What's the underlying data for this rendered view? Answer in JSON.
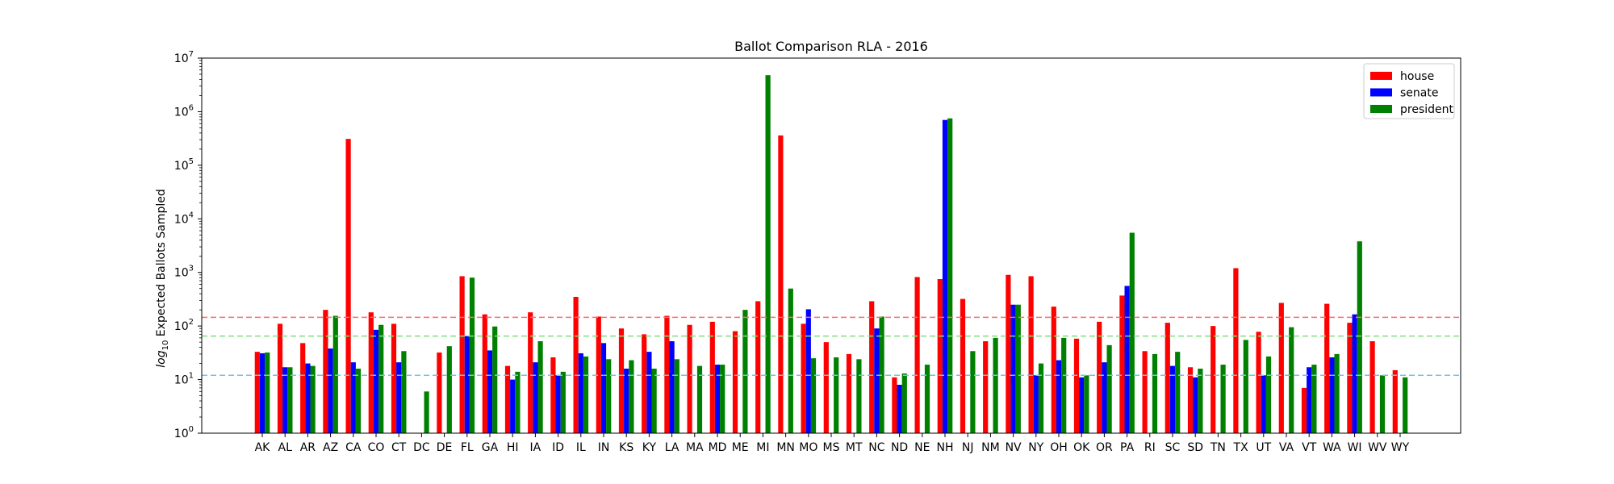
{
  "chart_data": {
    "type": "bar",
    "title": "Ballot Comparison RLA - 2016",
    "ylabel_prefix": "log",
    "ylabel_sub": "10",
    "ylabel_rest": " Expected Ballots Sampled",
    "xlabel": "",
    "yscale": "log",
    "ylim": [
      1,
      10000000
    ],
    "y_ticks": [
      {
        "value": 1,
        "base": "10",
        "exp": "0"
      },
      {
        "value": 10,
        "base": "10",
        "exp": "1"
      },
      {
        "value": 100,
        "base": "10",
        "exp": "2"
      },
      {
        "value": 1000,
        "base": "10",
        "exp": "3"
      },
      {
        "value": 10000,
        "base": "10",
        "exp": "4"
      },
      {
        "value": 100000,
        "base": "10",
        "exp": "5"
      },
      {
        "value": 1000000,
        "base": "10",
        "exp": "6"
      },
      {
        "value": 10000000,
        "base": "10",
        "exp": "7"
      }
    ],
    "grid": false,
    "legend_position": "top-right",
    "categories": [
      "AK",
      "AL",
      "AR",
      "AZ",
      "CA",
      "CO",
      "CT",
      "DC",
      "DE",
      "FL",
      "GA",
      "HI",
      "IA",
      "ID",
      "IL",
      "IN",
      "KS",
      "KY",
      "LA",
      "MA",
      "MD",
      "ME",
      "MI",
      "MN",
      "MO",
      "MS",
      "MT",
      "NC",
      "ND",
      "NE",
      "NH",
      "NJ",
      "NM",
      "NV",
      "NY",
      "OH",
      "OK",
      "OR",
      "PA",
      "RI",
      "SC",
      "SD",
      "TN",
      "TX",
      "UT",
      "VA",
      "VT",
      "WA",
      "WI",
      "WV",
      "WY"
    ],
    "series": [
      {
        "name": "house",
        "color": "#ff0000",
        "values": [
          33,
          110,
          48,
          200,
          310000,
          180,
          110,
          null,
          32,
          850,
          165,
          18,
          180,
          26,
          350,
          150,
          90,
          70,
          155,
          105,
          120,
          80,
          290,
          360000,
          110,
          50,
          30,
          290,
          11,
          820,
          750,
          320,
          52,
          900,
          850,
          230,
          58,
          120,
          370,
          34,
          115,
          17,
          100,
          1200,
          78,
          270,
          7,
          260,
          115,
          52,
          15
        ]
      },
      {
        "name": "senate",
        "color": "#0000ff",
        "values": [
          31,
          17,
          20,
          38,
          21,
          85,
          21,
          null,
          null,
          65,
          35,
          10,
          21,
          12,
          31,
          48,
          16,
          33,
          52,
          null,
          19,
          null,
          null,
          null,
          205,
          null,
          null,
          90,
          8,
          null,
          700000,
          null,
          null,
          250,
          12,
          23,
          11,
          21,
          560,
          null,
          18,
          11,
          null,
          null,
          12,
          null,
          17,
          26,
          165,
          null,
          null
        ]
      },
      {
        "name": "president",
        "color": "#008000",
        "values": [
          32,
          17,
          18,
          155,
          16,
          105,
          34,
          6,
          42,
          800,
          98,
          14,
          52,
          14,
          27,
          24,
          23,
          16,
          24,
          18,
          19,
          200,
          4800000,
          500,
          25,
          26,
          24,
          150,
          13,
          19,
          750000,
          34,
          60,
          250,
          20,
          60,
          12,
          44,
          5500,
          30,
          33,
          16,
          19,
          55,
          27,
          95,
          19,
          30,
          3800,
          12,
          11
        ]
      }
    ],
    "hlines": [
      {
        "value": 145,
        "color": "#ff6b6b"
      },
      {
        "value": 65,
        "color": "#80e080"
      },
      {
        "value": 12,
        "color": "#6ec6e6"
      }
    ]
  }
}
